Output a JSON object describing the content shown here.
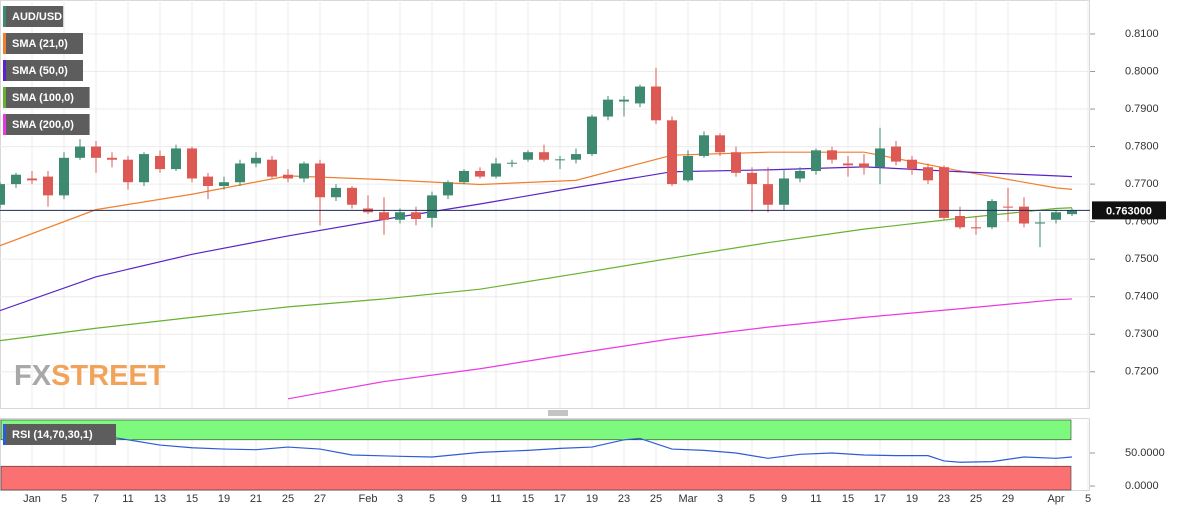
{
  "chart_data": [
    {
      "type": "candlestick",
      "name": "AUD/USD",
      "up_color": "#3d8a70",
      "down_color": "#dd5a54",
      "xlim": [
        0,
        68.125
      ],
      "ylim": [
        0.71035,
        0.81905
      ],
      "yticks": [
        {
          "value": 0.81,
          "label": "0.8100"
        },
        {
          "value": 0.8,
          "label": "0.8000"
        },
        {
          "value": 0.79,
          "label": "0.7900"
        },
        {
          "value": 0.78,
          "label": "0.7800"
        },
        {
          "value": 0.77,
          "label": "0.7700"
        },
        {
          "value": 0.76,
          "label": "0.7600"
        },
        {
          "value": 0.75,
          "label": "0.7500"
        },
        {
          "value": 0.74,
          "label": "0.7400"
        },
        {
          "value": 0.73,
          "label": "0.7300"
        },
        {
          "value": 0.72,
          "label": "0.7200"
        }
      ],
      "grid": true,
      "last_price": {
        "value": 0.763,
        "label": "0.763000"
      },
      "watermark": [
        "FX",
        "STREET"
      ],
      "x": [
        0,
        1,
        2,
        3,
        4,
        5,
        6,
        7,
        8,
        9,
        10,
        11,
        12,
        13,
        14,
        15,
        16,
        17,
        18,
        19,
        20,
        21,
        22,
        23,
        24,
        25,
        26,
        27,
        28,
        29,
        30,
        31,
        32,
        33,
        34,
        35,
        36,
        37,
        38,
        39,
        40,
        41,
        42,
        43,
        44,
        45,
        46,
        47,
        48,
        49,
        50,
        51,
        52,
        53,
        54,
        55,
        56,
        57,
        58,
        59,
        60,
        61,
        62,
        63,
        64,
        65,
        66,
        67
      ],
      "open": [
        0.7645,
        0.77,
        0.7715,
        0.772,
        0.767,
        0.777,
        0.78,
        0.777,
        0.7765,
        0.7705,
        0.7775,
        0.774,
        0.7795,
        0.772,
        0.7695,
        0.7705,
        0.7755,
        0.7765,
        0.7725,
        0.7715,
        0.7755,
        0.7665,
        0.769,
        0.7635,
        0.7625,
        0.7605,
        0.7625,
        0.761,
        0.767,
        0.7705,
        0.7735,
        0.772,
        0.7755,
        0.7765,
        0.7785,
        0.7765,
        0.7765,
        0.778,
        0.788,
        0.792,
        0.7915,
        0.796,
        0.787,
        0.771,
        0.7775,
        0.783,
        0.7785,
        0.773,
        0.77,
        0.7645,
        0.7715,
        0.7735,
        0.779,
        0.7755,
        0.7755,
        0.7745,
        0.78,
        0.7765,
        0.7745,
        0.7745,
        0.7615,
        0.7585,
        0.7585,
        0.764,
        0.764,
        0.7595,
        0.7605,
        0.762
      ],
      "high": [
        0.7705,
        0.773,
        0.7735,
        0.7735,
        0.7785,
        0.782,
        0.7815,
        0.7785,
        0.7775,
        0.7785,
        0.779,
        0.7805,
        0.78,
        0.773,
        0.772,
        0.7765,
        0.7785,
        0.7775,
        0.774,
        0.776,
        0.7765,
        0.77,
        0.7695,
        0.767,
        0.7665,
        0.7635,
        0.764,
        0.768,
        0.771,
        0.774,
        0.7745,
        0.777,
        0.7765,
        0.779,
        0.7805,
        0.7775,
        0.7795,
        0.7885,
        0.7935,
        0.7935,
        0.7965,
        0.801,
        0.788,
        0.779,
        0.784,
        0.7835,
        0.78,
        0.7745,
        0.7745,
        0.774,
        0.7745,
        0.7795,
        0.78,
        0.7775,
        0.778,
        0.785,
        0.7815,
        0.7775,
        0.7755,
        0.775,
        0.764,
        0.7615,
        0.766,
        0.769,
        0.7665,
        0.7625,
        0.763,
        0.7635
      ],
      "low": [
        0.7635,
        0.769,
        0.77,
        0.764,
        0.766,
        0.7765,
        0.773,
        0.7745,
        0.7685,
        0.7695,
        0.773,
        0.7735,
        0.7705,
        0.766,
        0.7685,
        0.7695,
        0.7745,
        0.7715,
        0.7705,
        0.7705,
        0.759,
        0.7655,
        0.7635,
        0.762,
        0.7565,
        0.7595,
        0.759,
        0.7585,
        0.766,
        0.77,
        0.7715,
        0.7715,
        0.7745,
        0.776,
        0.776,
        0.774,
        0.7755,
        0.7775,
        0.787,
        0.788,
        0.7905,
        0.786,
        0.7695,
        0.7705,
        0.777,
        0.7775,
        0.772,
        0.7625,
        0.7625,
        0.763,
        0.7705,
        0.7725,
        0.7755,
        0.772,
        0.7725,
        0.77,
        0.775,
        0.7725,
        0.77,
        0.7605,
        0.758,
        0.7565,
        0.758,
        0.76,
        0.7585,
        0.7532,
        0.7595,
        0.7615
      ],
      "close": [
        0.77,
        0.7725,
        0.771,
        0.767,
        0.777,
        0.78,
        0.777,
        0.7765,
        0.7705,
        0.778,
        0.774,
        0.7795,
        0.7715,
        0.7695,
        0.7705,
        0.7755,
        0.777,
        0.772,
        0.7715,
        0.7755,
        0.7665,
        0.769,
        0.7645,
        0.7625,
        0.7605,
        0.7625,
        0.7607,
        0.767,
        0.7705,
        0.7735,
        0.772,
        0.7755,
        0.7757,
        0.7785,
        0.7765,
        0.7766,
        0.778,
        0.788,
        0.7925,
        0.7925,
        0.796,
        0.787,
        0.77,
        0.7775,
        0.783,
        0.7785,
        0.773,
        0.77,
        0.7645,
        0.7715,
        0.7735,
        0.779,
        0.7765,
        0.775,
        0.7745,
        0.7795,
        0.776,
        0.774,
        0.771,
        0.761,
        0.7585,
        0.7582,
        0.7655,
        0.7638,
        0.7595,
        0.7598,
        0.7625,
        0.763
      ],
      "series": [
        {
          "name": "SMA (21,0)",
          "color": "#f07f2e",
          "x": [
            0,
            6,
            12,
            18,
            24,
            30,
            36,
            42,
            48,
            54,
            60,
            66,
            67
          ],
          "values": [
            0.7536,
            0.7632,
            0.7673,
            0.7722,
            0.7712,
            0.7699,
            0.771,
            0.7777,
            0.7785,
            0.7785,
            0.7735,
            0.769,
            0.7686
          ]
        },
        {
          "name": "SMA (50,0)",
          "color": "#5a23c8",
          "x": [
            0,
            6,
            12,
            18,
            24,
            30,
            36,
            42,
            48,
            54,
            60,
            66,
            67
          ],
          "values": [
            0.7363,
            0.7453,
            0.7513,
            0.7562,
            0.7606,
            0.7647,
            0.7691,
            0.7733,
            0.7738,
            0.7746,
            0.7733,
            0.7722,
            0.772
          ]
        },
        {
          "name": "SMA (100,0)",
          "color": "#66b22e",
          "x": [
            0,
            6,
            12,
            18,
            24,
            30,
            36,
            42,
            48,
            54,
            60,
            66,
            67
          ],
          "values": [
            0.7283,
            0.7316,
            0.7345,
            0.7373,
            0.7394,
            0.742,
            0.7461,
            0.7503,
            0.7544,
            0.758,
            0.7609,
            0.7635,
            0.7637
          ]
        },
        {
          "name": "SMA (200,0)",
          "color": "#e83ae0",
          "x": [
            0,
            6,
            12,
            18,
            24,
            30,
            36,
            42,
            48,
            54,
            60,
            66,
            67
          ],
          "values": [
            null,
            null,
            null,
            0.7128,
            0.7174,
            0.7208,
            0.7249,
            0.7288,
            0.7319,
            0.7345,
            0.7368,
            0.7392,
            0.7394
          ]
        }
      ]
    },
    {
      "type": "line",
      "xlim": [
        0,
        68.125
      ],
      "ylim": [
        -6,
        103
      ],
      "yticks": [
        {
          "value": 50,
          "label": "50.0000"
        },
        {
          "value": 0,
          "label": "0.0000"
        }
      ],
      "xticks": [
        {
          "value": 2,
          "label": "Jan"
        },
        {
          "value": 4,
          "label": "5"
        },
        {
          "value": 6,
          "label": "7"
        },
        {
          "value": 8,
          "label": "11"
        },
        {
          "value": 10,
          "label": "13"
        },
        {
          "value": 12,
          "label": "15"
        },
        {
          "value": 14,
          "label": "19"
        },
        {
          "value": 16,
          "label": "21"
        },
        {
          "value": 18,
          "label": "25"
        },
        {
          "value": 20,
          "label": "27"
        },
        {
          "value": 23,
          "label": "Feb"
        },
        {
          "value": 25,
          "label": "3"
        },
        {
          "value": 27,
          "label": "5"
        },
        {
          "value": 29,
          "label": "9"
        },
        {
          "value": 31,
          "label": "11"
        },
        {
          "value": 33,
          "label": "15"
        },
        {
          "value": 35,
          "label": "17"
        },
        {
          "value": 37,
          "label": "19"
        },
        {
          "value": 39,
          "label": "23"
        },
        {
          "value": 41,
          "label": "25"
        },
        {
          "value": 43,
          "label": "Mar"
        },
        {
          "value": 45,
          "label": "3"
        },
        {
          "value": 47,
          "label": "5"
        },
        {
          "value": 49,
          "label": "9"
        },
        {
          "value": 51,
          "label": "11"
        },
        {
          "value": 53,
          "label": "15"
        },
        {
          "value": 55,
          "label": "17"
        },
        {
          "value": 57,
          "label": "19"
        },
        {
          "value": 59,
          "label": "23"
        },
        {
          "value": 61,
          "label": "25"
        },
        {
          "value": 63,
          "label": "29"
        },
        {
          "value": 66,
          "label": "Apr"
        },
        {
          "value": 68,
          "label": "5"
        }
      ],
      "bands": [
        {
          "from": 70,
          "to": 100,
          "color": "#7dfa7d"
        },
        {
          "from": 30,
          "to": -6,
          "color": "#fb7070"
        }
      ],
      "series": [
        {
          "name": "RSI (14,70,30,1)",
          "color": "#2f5bd8",
          "x": [
            7,
            10,
            12,
            14,
            16,
            18,
            20,
            22,
            25,
            27,
            30,
            33,
            35,
            37,
            39,
            40,
            42,
            44,
            46,
            48,
            50,
            52,
            54,
            56,
            58,
            59,
            60,
            62,
            64,
            66,
            67
          ],
          "values": [
            74,
            62,
            58,
            56,
            55,
            59,
            56,
            47,
            45,
            44,
            51,
            54,
            57,
            59,
            70,
            72,
            56,
            54,
            50,
            42,
            48,
            50,
            47,
            46,
            46,
            38,
            36,
            37,
            44,
            42,
            44
          ]
        }
      ]
    }
  ]
}
